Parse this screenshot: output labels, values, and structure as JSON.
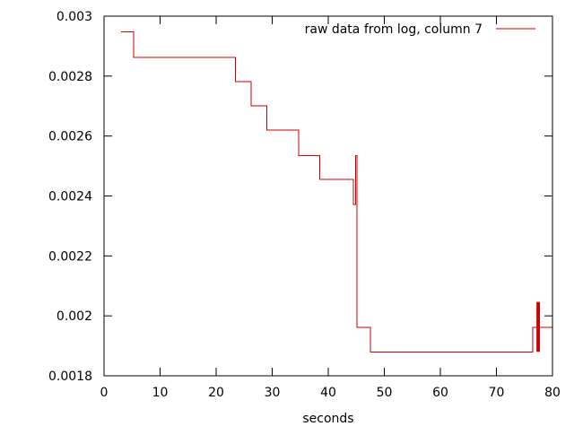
{
  "chart_data": {
    "type": "line",
    "step": true,
    "xlabel": "seconds",
    "ylabel": "",
    "xlim": [
      0,
      80
    ],
    "ylim": [
      0.0018,
      0.003
    ],
    "xticks": [
      0,
      10,
      20,
      30,
      40,
      50,
      60,
      70,
      80
    ],
    "xtick_labels": [
      "0",
      "10",
      "20",
      "30",
      "40",
      "50",
      "60",
      "70",
      "80"
    ],
    "yticks": [
      0.0018,
      0.002,
      0.0022,
      0.0024,
      0.0026,
      0.0028,
      0.003
    ],
    "ytick_labels": [
      "0.0018",
      "0.002",
      "0.0022",
      "0.0024",
      "0.0026",
      "0.0028",
      "0.003"
    ],
    "grid": false,
    "legend_position": "top-right",
    "series": [
      {
        "name": "raw data from log, column 7",
        "color": "#cc0000",
        "x": [
          3.0,
          5.3,
          23.4,
          26.2,
          29.0,
          34.7,
          38.5,
          44.5,
          44.9,
          45.1,
          47.5,
          76.5,
          77.3,
          77.6,
          80.0
        ],
        "y": [
          0.002947,
          0.002862,
          0.002782,
          0.0027,
          0.00262,
          0.002535,
          0.002455,
          0.002372,
          0.002535,
          0.001962,
          0.00188,
          0.001962,
          0.002045,
          0.001962,
          0.001962
        ]
      }
    ]
  }
}
